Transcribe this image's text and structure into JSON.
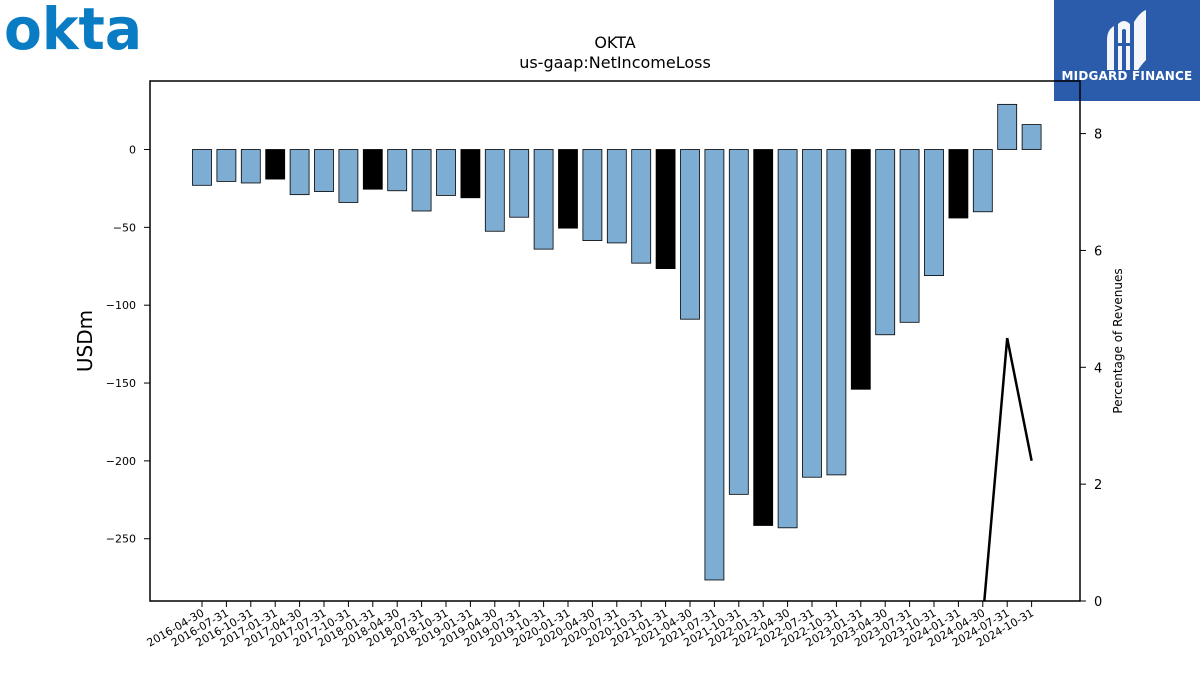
{
  "brand": {
    "logo_text": "okta",
    "logo_color": "#0a7cc4",
    "badge_name": "MIDGARD FINANCE",
    "badge_color": "#2b5bab"
  },
  "chart_data": {
    "type": "bar",
    "title": "OKTA",
    "subtitle": "us-gaap:NetIncomeLoss",
    "ylabel": "USDm",
    "y2label": "Percentage of Revenues",
    "ylim": [
      -290,
      44
    ],
    "y2lim": [
      0,
      8.9
    ],
    "yticks": [
      0,
      -50,
      -100,
      -150,
      -200,
      -250
    ],
    "y2ticks": [
      0,
      2,
      4,
      6,
      8
    ],
    "grid": false,
    "colors": {
      "quarter": "#7eadd4",
      "fiscal_year_end": "#000000",
      "line": "#000000"
    },
    "categories": [
      "2016-04-30",
      "2016-07-31",
      "2016-10-31",
      "2017-01-31",
      "2017-04-30",
      "2017-07-31",
      "2017-10-31",
      "2018-01-31",
      "2018-04-30",
      "2018-07-31",
      "2018-10-31",
      "2019-01-31",
      "2019-04-30",
      "2019-07-31",
      "2019-10-31",
      "2020-01-31",
      "2020-04-30",
      "2020-07-31",
      "2020-10-31",
      "2021-01-31",
      "2021-04-30",
      "2021-07-31",
      "2021-10-31",
      "2022-01-31",
      "2022-04-30",
      "2022-07-31",
      "2022-10-31",
      "2023-01-31",
      "2023-04-30",
      "2023-07-31",
      "2023-10-31",
      "2024-01-31",
      "2024-04-30",
      "2024-07-31",
      "2024-10-31"
    ],
    "series": [
      {
        "kind": "bar",
        "values": [
          -23,
          -20.5,
          -21.5,
          -19,
          -29,
          -27,
          -34,
          -25.5,
          -26.5,
          -39.5,
          -29.5,
          -31,
          -52.5,
          -43.5,
          -64,
          -50.5,
          -58.5,
          -60,
          -73,
          -76.5,
          -109,
          -276.5,
          -221.5,
          -241.5,
          -243,
          -210.5,
          -209,
          -154,
          -119,
          -111,
          -81,
          -44,
          -40,
          29,
          16
        ],
        "highlight": [
          false,
          false,
          false,
          true,
          false,
          false,
          false,
          true,
          false,
          false,
          false,
          true,
          false,
          false,
          false,
          true,
          false,
          false,
          false,
          true,
          false,
          false,
          false,
          true,
          false,
          false,
          false,
          true,
          false,
          false,
          false,
          true,
          false,
          false,
          false
        ]
      },
      {
        "kind": "line",
        "axis": "right",
        "points": [
          {
            "x": "2024-04-30",
            "y": -0.3
          },
          {
            "x": "2024-07-31",
            "y": 4.5
          },
          {
            "x": "2024-10-31",
            "y": 2.4
          }
        ]
      }
    ]
  }
}
